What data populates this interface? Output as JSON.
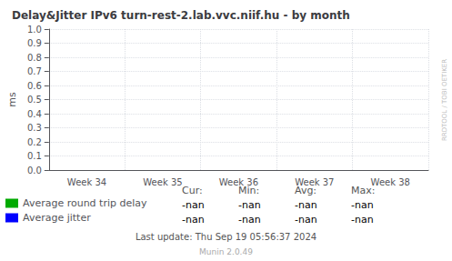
{
  "chart_data": {
    "type": "line",
    "title": "Delay&Jitter IPv6 turn-rest-2.lab.vvc.niif.hu - by month",
    "y_label": "ms",
    "categories": [
      "Week 34",
      "Week 35",
      "Week 36",
      "Week 37",
      "Week 38"
    ],
    "series": [
      {
        "name": "Average round trip delay",
        "color": "#00aa00",
        "values": [
          null,
          null,
          null,
          null,
          null
        ],
        "stats": [
          "-nan",
          "-nan",
          "-nan",
          "-nan"
        ]
      },
      {
        "name": "Average jitter",
        "color": "#0000ff",
        "values": [
          null,
          null,
          null,
          null,
          null
        ],
        "stats": [
          "-nan",
          "-nan",
          "-nan",
          "-nan"
        ]
      }
    ],
    "stats_headers": [
      "Cur:",
      "Min:",
      "Avg:",
      "Max:"
    ],
    "ylim": [
      0.0,
      1.0
    ],
    "yticks": [
      {
        "value": 0.0,
        "label": "0.0"
      },
      0.1,
      0.2,
      0.3,
      0.4,
      0.5,
      0.6,
      0.7,
      0.8,
      0.9,
      {
        "value": 1.0,
        "label": "1.0"
      }
    ],
    "grid": true,
    "legend": "bottom",
    "annotations": [
      "Last update: Thu Sep 19 05:56:37 2024",
      "Munin 2.0.49",
      "RRDTOOL / TOBI OETIKER"
    ]
  }
}
